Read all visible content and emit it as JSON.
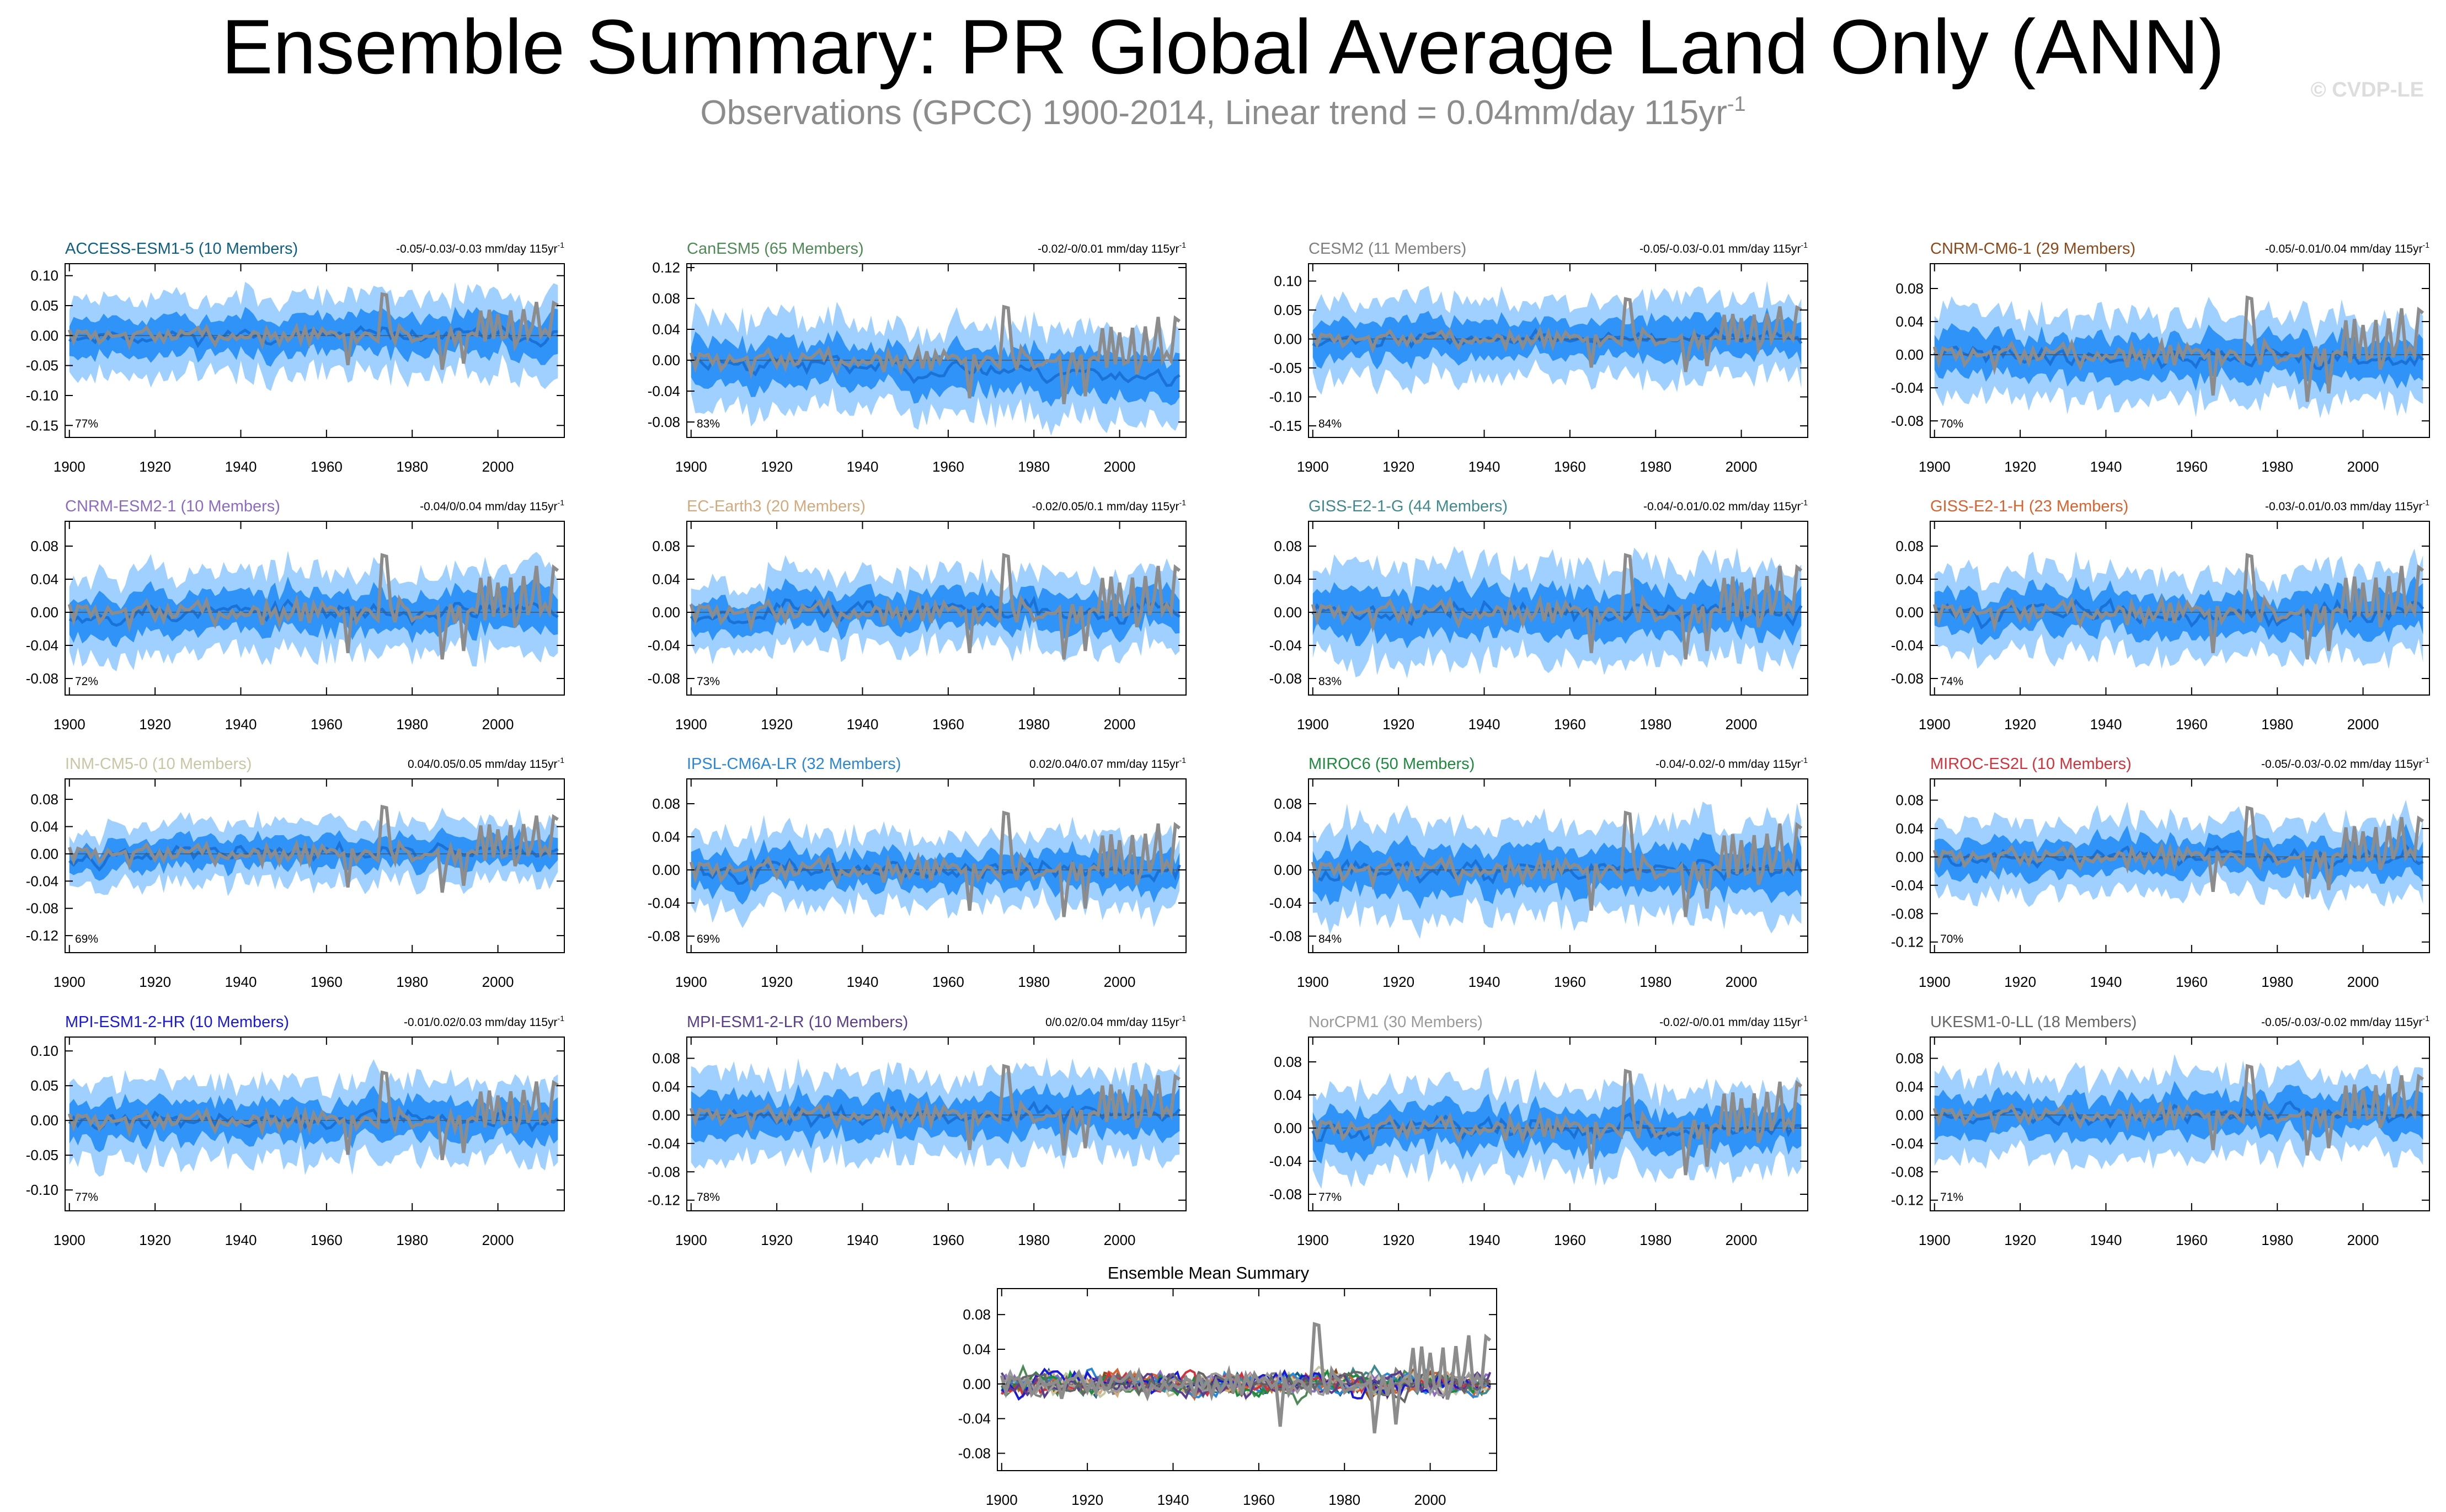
{
  "title": "Ensemble Summary: PR Global Average Land Only (ANN)",
  "subtitle": "Observations (GPCC) 1900-2014, Linear trend = 0.04mm/day 115yr",
  "subtitle_exp": "-1",
  "watermark": "© CVDP-LE",
  "colors": {
    "obs": "#8c8c8c",
    "band_outer": "#9fd0ff",
    "band_inner": "#2f93f7",
    "mean_line": "#1a72d6"
  },
  "chart_data": [
    {
      "type": "line",
      "title": "ACCESS-ESM1-5 (10 Members)",
      "title_color": "#0e5f82",
      "trend": "-0.05/-0.03/-0.03 mm/day 115yr",
      "trend_exp": "-1",
      "pct": "77%",
      "x": [
        1900,
        2014
      ],
      "ylim": [
        -0.17,
        0.12
      ],
      "yticks": [
        0.1,
        0.05,
        0.0,
        -0.05,
        -0.1,
        -0.15
      ],
      "ytick_labels": [
        "0.10",
        "0.05",
        "0.00",
        "-0.05",
        "-0.10",
        "-0.15"
      ],
      "xticks": [
        1900,
        1920,
        1940,
        1960,
        1980,
        2000
      ],
      "spread": 0.05,
      "seed": 11,
      "trendline": 0.0
    },
    {
      "type": "line",
      "title": "CanESM5 (65 Members)",
      "title_color": "#4e8a56",
      "trend": "-0.02/-0/0.01 mm/day 115yr",
      "trend_exp": "-1",
      "pct": "83%",
      "x": [
        1900,
        2014
      ],
      "ylim": [
        -0.1,
        0.125
      ],
      "yticks": [
        0.12,
        0.08,
        0.04,
        0.0,
        -0.04,
        -0.08
      ],
      "ytick_labels": [
        "0.12",
        "0.08",
        "0.04",
        "0.00",
        "-0.04",
        "-0.08"
      ],
      "xticks": [
        1900,
        1920,
        1940,
        1960,
        1980,
        2000
      ],
      "spread": 0.045,
      "seed": 23,
      "trendline": -0.02
    },
    {
      "type": "line",
      "title": "CESM2 (11 Members)",
      "title_color": "#7f7f7f",
      "trend": "-0.05/-0.03/-0.01 mm/day 115yr",
      "trend_exp": "-1",
      "pct": "84%",
      "x": [
        1900,
        2014
      ],
      "ylim": [
        -0.17,
        0.13
      ],
      "yticks": [
        0.1,
        0.05,
        0.0,
        -0.05,
        -0.1,
        -0.15
      ],
      "ytick_labels": [
        "0.10",
        "0.05",
        "0.00",
        "-0.05",
        "-0.10",
        "-0.15"
      ],
      "xticks": [
        1900,
        1920,
        1940,
        1960,
        1980,
        2000
      ],
      "spread": 0.055,
      "seed": 37,
      "trendline": 0.0
    },
    {
      "type": "line",
      "title": "CNRM-CM6-1 (29 Members)",
      "title_color": "#8a4a1c",
      "trend": "-0.05/-0.01/0.04 mm/day 115yr",
      "trend_exp": "-1",
      "pct": "70%",
      "x": [
        1900,
        2014
      ],
      "ylim": [
        -0.1,
        0.11
      ],
      "yticks": [
        0.08,
        0.04,
        0.0,
        -0.04,
        -0.08
      ],
      "ytick_labels": [
        "0.08",
        "0.04",
        "0.00",
        "-0.04",
        "-0.08"
      ],
      "xticks": [
        1900,
        1920,
        1940,
        1960,
        1980,
        2000
      ],
      "spread": 0.04,
      "seed": 41,
      "trendline": -0.005
    },
    {
      "type": "line",
      "title": "CNRM-ESM2-1 (10 Members)",
      "title_color": "#8c6bc2",
      "trend": "-0.04/0/0.04 mm/day 115yr",
      "trend_exp": "-1",
      "pct": "72%",
      "x": [
        1900,
        2014
      ],
      "ylim": [
        -0.1,
        0.11
      ],
      "yticks": [
        0.08,
        0.04,
        0.0,
        -0.04,
        -0.08
      ],
      "ytick_labels": [
        "0.08",
        "0.04",
        "0.00",
        "-0.04",
        "-0.08"
      ],
      "xticks": [
        1900,
        1920,
        1940,
        1960,
        1980,
        2000
      ],
      "spread": 0.04,
      "seed": 53,
      "trendline": 0.0
    },
    {
      "type": "line",
      "title": "EC-Earth3 (20 Members)",
      "title_color": "#d2aa7d",
      "trend": "-0.02/0.05/0.1 mm/day 115yr",
      "trend_exp": "-1",
      "pct": "73%",
      "x": [
        1900,
        2014
      ],
      "ylim": [
        -0.1,
        0.11
      ],
      "yticks": [
        0.08,
        0.04,
        0.0,
        -0.04,
        -0.08
      ],
      "ytick_labels": [
        "0.08",
        "0.04",
        "0.00",
        "-0.04",
        "-0.08"
      ],
      "xticks": [
        1900,
        1920,
        1940,
        1960,
        1980,
        2000
      ],
      "spread": 0.035,
      "seed": 67,
      "trendline": 0.005
    },
    {
      "type": "line",
      "title": "GISS-E2-1-G (44 Members)",
      "title_color": "#3f8a8c",
      "trend": "-0.04/-0.01/0.02 mm/day 115yr",
      "trend_exp": "-1",
      "pct": "83%",
      "x": [
        1900,
        2014
      ],
      "ylim": [
        -0.1,
        0.11
      ],
      "yticks": [
        0.08,
        0.04,
        0.0,
        -0.04,
        -0.08
      ],
      "ytick_labels": [
        "0.08",
        "0.04",
        "0.00",
        "-0.04",
        "-0.08"
      ],
      "xticks": [
        1900,
        1920,
        1940,
        1960,
        1980,
        2000
      ],
      "spread": 0.045,
      "seed": 71,
      "trendline": 0.0
    },
    {
      "type": "line",
      "title": "GISS-E2-1-H (23 Members)",
      "title_color": "#d9622e",
      "trend": "-0.03/-0.01/0.03 mm/day 115yr",
      "trend_exp": "-1",
      "pct": "74%",
      "x": [
        1900,
        2014
      ],
      "ylim": [
        -0.1,
        0.11
      ],
      "yticks": [
        0.08,
        0.04,
        0.0,
        -0.04,
        -0.08
      ],
      "ytick_labels": [
        "0.08",
        "0.04",
        "0.00",
        "-0.04",
        "-0.08"
      ],
      "xticks": [
        1900,
        1920,
        1940,
        1960,
        1980,
        2000
      ],
      "spread": 0.04,
      "seed": 83,
      "trendline": 0.0
    },
    {
      "type": "line",
      "title": "INM-CM5-0 (10 Members)",
      "title_color": "#c8c6a4",
      "trend": "0.04/0.05/0.05 mm/day 115yr",
      "trend_exp": "-1",
      "pct": "69%",
      "x": [
        1900,
        2014
      ],
      "ylim": [
        -0.145,
        0.11
      ],
      "yticks": [
        0.08,
        0.04,
        0.0,
        -0.04,
        -0.08,
        -0.12
      ],
      "ytick_labels": [
        "0.08",
        "0.04",
        "0.00",
        "-0.04",
        "-0.08",
        "-0.12"
      ],
      "xticks": [
        1900,
        1920,
        1940,
        1960,
        1980,
        2000
      ],
      "spread": 0.035,
      "seed": 97,
      "trendline": 0.0
    },
    {
      "type": "line",
      "title": "IPSL-CM6A-LR (32 Members)",
      "title_color": "#2a86d6",
      "trend": "0.02/0.04/0.07 mm/day 115yr",
      "trend_exp": "-1",
      "pct": "69%",
      "x": [
        1900,
        2014
      ],
      "ylim": [
        -0.1,
        0.11
      ],
      "yticks": [
        0.08,
        0.04,
        0.0,
        -0.04,
        -0.08
      ],
      "ytick_labels": [
        "0.08",
        "0.04",
        "0.00",
        "-0.04",
        "-0.08"
      ],
      "xticks": [
        1900,
        1920,
        1940,
        1960,
        1980,
        2000
      ],
      "spread": 0.035,
      "seed": 101,
      "trendline": 0.0
    },
    {
      "type": "line",
      "title": "MIROC6 (50 Members)",
      "title_color": "#1e8a3e",
      "trend": "-0.04/-0.02/-0 mm/day 115yr",
      "trend_exp": "-1",
      "pct": "84%",
      "x": [
        1900,
        2014
      ],
      "ylim": [
        -0.1,
        0.11
      ],
      "yticks": [
        0.08,
        0.04,
        0.0,
        -0.04,
        -0.08
      ],
      "ytick_labels": [
        "0.08",
        "0.04",
        "0.00",
        "-0.04",
        "-0.08"
      ],
      "xticks": [
        1900,
        1920,
        1940,
        1960,
        1980,
        2000
      ],
      "spread": 0.045,
      "seed": 113,
      "trendline": 0.0
    },
    {
      "type": "line",
      "title": "MIROC-ES2L (10 Members)",
      "title_color": "#d2323c",
      "trend": "-0.05/-0.03/-0.02 mm/day 115yr",
      "trend_exp": "-1",
      "pct": "70%",
      "x": [
        1900,
        2014
      ],
      "ylim": [
        -0.135,
        0.11
      ],
      "yticks": [
        0.08,
        0.04,
        0.0,
        -0.04,
        -0.08,
        -0.12
      ],
      "ytick_labels": [
        "0.08",
        "0.04",
        "0.00",
        "-0.04",
        "-0.08",
        "-0.12"
      ],
      "xticks": [
        1900,
        1920,
        1940,
        1960,
        1980,
        2000
      ],
      "spread": 0.04,
      "seed": 127,
      "trendline": 0.0
    },
    {
      "type": "line",
      "title": "MPI-ESM1-2-HR (10 Members)",
      "title_color": "#1a1ad6",
      "trend": "-0.01/0.02/0.03 mm/day 115yr",
      "trend_exp": "-1",
      "pct": "77%",
      "x": [
        1900,
        2014
      ],
      "ylim": [
        -0.13,
        0.12
      ],
      "yticks": [
        0.1,
        0.05,
        0.0,
        -0.05,
        -0.1
      ],
      "ytick_labels": [
        "0.10",
        "0.05",
        "0.00",
        "-0.05",
        "-0.10"
      ],
      "xticks": [
        1900,
        1920,
        1940,
        1960,
        1980,
        2000
      ],
      "spread": 0.045,
      "seed": 131,
      "trendline": 0.0
    },
    {
      "type": "line",
      "title": "MPI-ESM1-2-LR (10 Members)",
      "title_color": "#5a3e8c",
      "trend": "0/0.02/0.04 mm/day 115yr",
      "trend_exp": "-1",
      "pct": "78%",
      "x": [
        1900,
        2014
      ],
      "ylim": [
        -0.135,
        0.11
      ],
      "yticks": [
        0.08,
        0.04,
        0.0,
        -0.04,
        -0.08,
        -0.12
      ],
      "ytick_labels": [
        "0.08",
        "0.04",
        "0.00",
        "-0.04",
        "-0.08",
        "-0.12"
      ],
      "xticks": [
        1900,
        1920,
        1940,
        1960,
        1980,
        2000
      ],
      "spread": 0.045,
      "seed": 149,
      "trendline": 0.0
    },
    {
      "type": "line",
      "title": "NorCPM1 (30 Members)",
      "title_color": "#9a9a9a",
      "trend": "-0.02/-0/0.01 mm/day 115yr",
      "trend_exp": "-1",
      "pct": "77%",
      "x": [
        1900,
        2014
      ],
      "ylim": [
        -0.1,
        0.11
      ],
      "yticks": [
        0.08,
        0.04,
        0.0,
        -0.04,
        -0.08
      ],
      "ytick_labels": [
        "0.08",
        "0.04",
        "0.00",
        "-0.04",
        "-0.08"
      ],
      "xticks": [
        1900,
        1920,
        1940,
        1960,
        1980,
        2000
      ],
      "spread": 0.04,
      "seed": 157,
      "trendline": 0.0
    },
    {
      "type": "line",
      "title": "UKESM1-0-LL (18 Members)",
      "title_color": "#666666",
      "trend": "-0.05/-0.03/-0.02 mm/day 115yr",
      "trend_exp": "-1",
      "pct": "71%",
      "x": [
        1900,
        2014
      ],
      "ylim": [
        -0.135,
        0.11
      ],
      "yticks": [
        0.08,
        0.04,
        0.0,
        -0.04,
        -0.08,
        -0.12
      ],
      "ytick_labels": [
        "0.08",
        "0.04",
        "0.00",
        "-0.04",
        "-0.08",
        "-0.12"
      ],
      "xticks": [
        1900,
        1920,
        1940,
        1960,
        1980,
        2000
      ],
      "spread": 0.045,
      "seed": 163,
      "trendline": 0.0
    },
    {
      "type": "line",
      "title": "Ensemble Mean Summary",
      "title_color": "#000000",
      "x": [
        1900,
        2014
      ],
      "ylim": [
        -0.1,
        0.11
      ],
      "yticks": [
        0.08,
        0.04,
        0.0,
        -0.04,
        -0.08
      ],
      "ytick_labels": [
        "0.08",
        "0.04",
        "0.00",
        "-0.04",
        "-0.08"
      ],
      "xticks": [
        1900,
        1920,
        1940,
        1960,
        1980,
        2000
      ],
      "series_colors": [
        "#0e5f82",
        "#4e8a56",
        "#7f7f7f",
        "#8a4a1c",
        "#8c6bc2",
        "#d2aa7d",
        "#3f8a8c",
        "#d9622e",
        "#c8c6a4",
        "#2a86d6",
        "#1e8a3e",
        "#d2323c",
        "#1a1ad6",
        "#5a3e8c",
        "#9a9a9a",
        "#666666"
      ],
      "seed": 211
    }
  ]
}
